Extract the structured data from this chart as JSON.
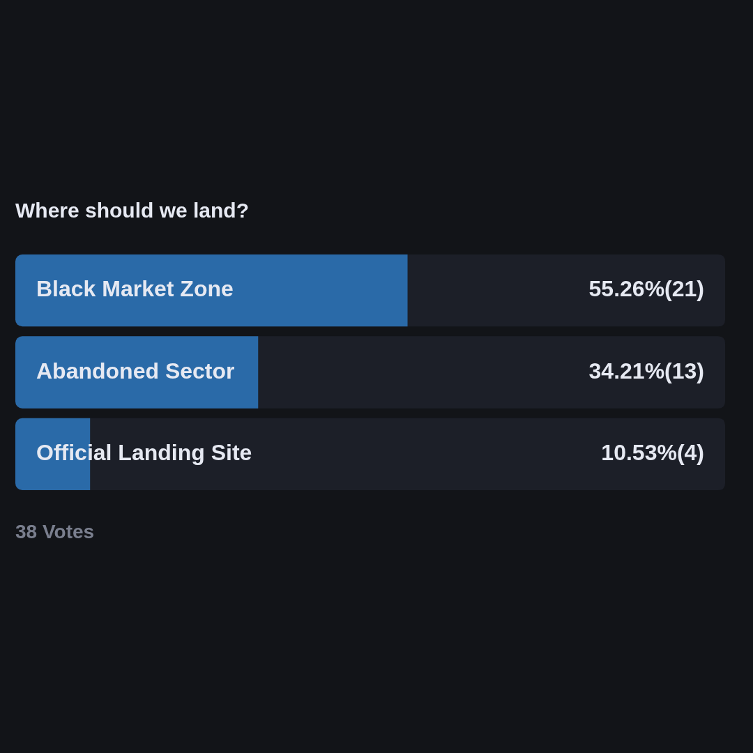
{
  "chart_data": {
    "type": "bar",
    "orientation": "horizontal",
    "title": "Where should we land?",
    "categories": [
      "Black Market Zone",
      "Abandoned Sector",
      "Official Landing Site"
    ],
    "values": [
      55.26,
      34.21,
      10.53
    ],
    "value_labels": [
      "55.26%(21)",
      "34.21%(13)",
      "10.53%(4)"
    ],
    "color": "#2a6aa8",
    "xlim": [
      0,
      100
    ],
    "annotations": [
      "38 Votes"
    ]
  }
}
